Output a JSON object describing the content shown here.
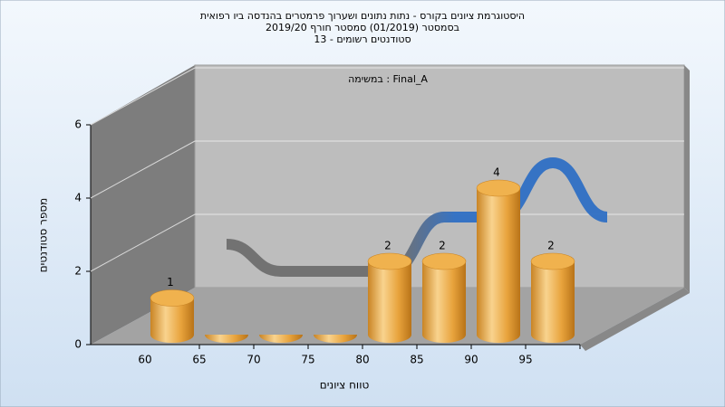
{
  "chart_data": {
    "type": "bar3d",
    "title": "היסטוגרמת ציונים בקורס - נתות נתונים ושערוך פרמטרים בהנדסה ביו רפואית",
    "subtitle": "בסמסטר  (01/2019)  סמסטר חורף 2019/20",
    "subtitle2": "סטודנטים רשומים - 13",
    "annotation": "במשימה : Final_A",
    "xlabel": "טווח ציונים",
    "ylabel": "מספר סטודנטים",
    "categories": [
      "60",
      "65",
      "70",
      "75",
      "80",
      "85",
      "90",
      "95"
    ],
    "values": [
      1,
      0,
      0,
      0,
      2,
      2,
      4,
      2
    ],
    "color": "#e8a33c",
    "ribbon_colors": [
      "#6e6e6e",
      "#2f6fc4"
    ],
    "ylim": [
      0,
      6
    ],
    "yticks": [
      0,
      2,
      4,
      6
    ],
    "grid": true
  }
}
